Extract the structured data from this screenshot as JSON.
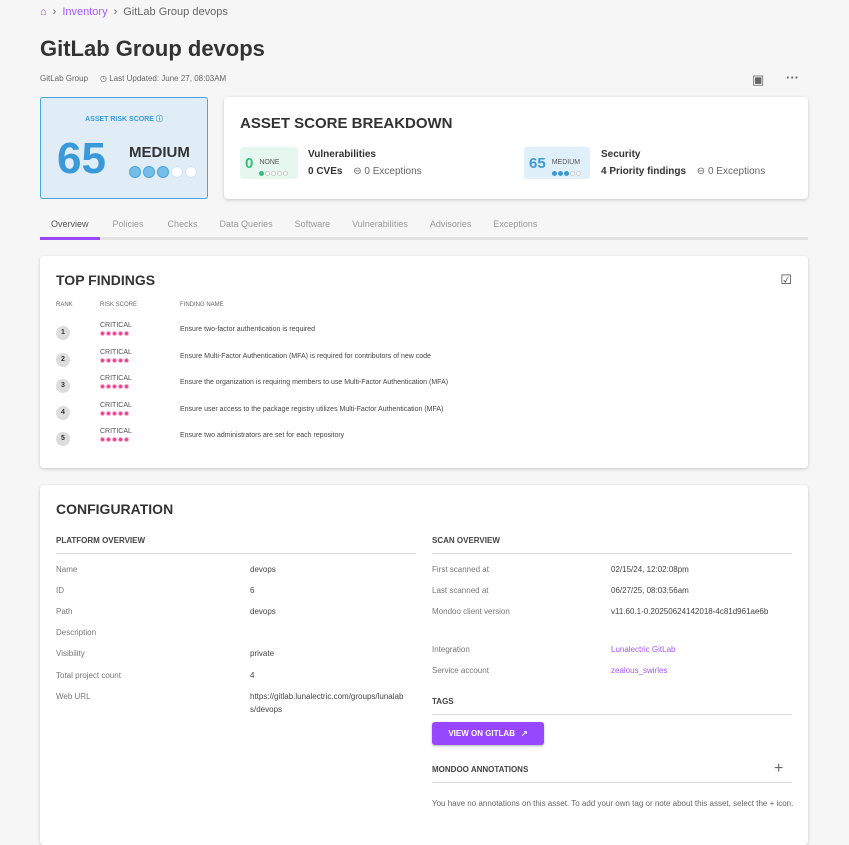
{
  "breadcrumb": {
    "home_icon": "home-icon",
    "items": [
      "Inventory",
      "GitLab Group devops"
    ]
  },
  "header": {
    "title": "GitLab Group devops",
    "type": "GitLab Group",
    "last_updated": "Last Updated: June 27, 08:03AM",
    "actions": [
      "report-icon",
      "more-icon"
    ]
  },
  "risk": {
    "label": "ASSET RISK SCORE",
    "score": "65",
    "level": "MEDIUM",
    "filled_dots": 3,
    "total_dots": 5,
    "color": "#3a9ad9"
  },
  "breakdown": {
    "title": "ASSET SCORE BREAKDOWN",
    "vuln": {
      "score": "0",
      "level": "NONE",
      "name": "Vulnerabilities",
      "count": "0 CVEs",
      "exceptions": "0 Exceptions",
      "color": "#2ec27e"
    },
    "security": {
      "score": "65",
      "level": "MEDIUM",
      "name": "Security",
      "count": "4 Priority findings",
      "exceptions": "0 Exceptions",
      "color": "#3a9ad9"
    }
  },
  "tabs": [
    "Overview",
    "Policies",
    "Checks",
    "Data Queries",
    "Software",
    "Vulnerabilities",
    "Advisories",
    "Exceptions"
  ],
  "findings": {
    "title": "TOP FINDINGS",
    "headers": [
      "RANK",
      "RISK SCORE",
      "FINDING NAME"
    ],
    "rows": [
      {
        "rank": "1",
        "risk": "CRITICAL",
        "name": "Ensure two-factor authentication is required"
      },
      {
        "rank": "2",
        "risk": "CRITICAL",
        "name": "Ensure Multi-Factor Authentication (MFA) is required for contributors of new code"
      },
      {
        "rank": "3",
        "risk": "CRITICAL",
        "name": "Ensure the organization is requiring members to use Multi-Factor Authentication (MFA)"
      },
      {
        "rank": "4",
        "risk": "CRITICAL",
        "name": "Ensure user access to the package registry utilizes Multi-Factor Authentication (MFA)"
      },
      {
        "rank": "5",
        "risk": "CRITICAL",
        "name": "Ensure two administrators are set for each repository"
      }
    ]
  },
  "config": {
    "title": "CONFIGURATION",
    "platform": {
      "title": "PLATFORM OVERVIEW",
      "rows": [
        {
          "k": "Name",
          "v": "devops"
        },
        {
          "k": "ID",
          "v": "6"
        },
        {
          "k": "Path",
          "v": "devops"
        },
        {
          "k": "Description",
          "v": ""
        },
        {
          "k": "Visibility",
          "v": "private"
        },
        {
          "k": "Total project count",
          "v": "4"
        },
        {
          "k": "Web URL",
          "v": "https://gitlab.lunalectric.com/groups/lunalabs/devops"
        }
      ]
    },
    "scan": {
      "title": "SCAN OVERVIEW",
      "rows": [
        {
          "k": "First scanned at",
          "v": "02/15/24, 12:02:08pm"
        },
        {
          "k": "Last scanned at",
          "v": "06/27/25, 08:03:56am"
        },
        {
          "k": "Mondoo client version",
          "v": "v11.60.1-0.20250624142018-4c81d961ae6b"
        },
        {
          "k": "Integration",
          "v": "Lunalectric GitLab"
        },
        {
          "k": "Service account",
          "v": "zealous_swirles"
        }
      ]
    },
    "tags_title": "TAGS",
    "view_button": "VIEW ON GITLAB",
    "annotations_title": "MONDOO ANNOTATIONS",
    "annotations_empty": "You have no annotations on this asset. To add your own tag or note about this asset, select the + icon."
  }
}
